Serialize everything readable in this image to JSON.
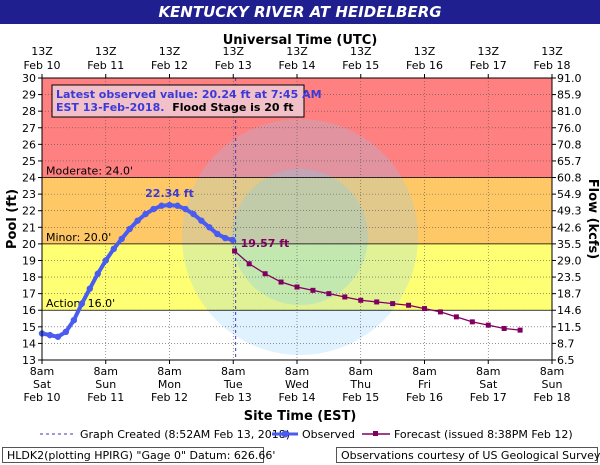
{
  "header": {
    "title": "KENTUCKY RIVER AT HEIDELBERG"
  },
  "chart_data": {
    "type": "line",
    "title": "KENTUCKY RIVER AT HEIDELBERG",
    "top_axis_title": "Universal Time (UTC)",
    "bottom_axis_title": "Site Time (EST)",
    "ylabel_left": "Pool (ft)",
    "ylabel_right": "Flow (kcfs)",
    "ylim": [
      13,
      30
    ],
    "yticks": [
      13,
      14,
      15,
      16,
      17,
      18,
      19,
      20,
      21,
      22,
      23,
      24,
      25,
      26,
      27,
      28,
      29,
      30
    ],
    "right_ticks": [
      "6.5",
      "8.7",
      "11.5",
      "14.6",
      "18.7",
      "23.5",
      "29.0",
      "35.5",
      "42.6",
      "49.3",
      "54.9",
      "60.8",
      "65.7",
      "70.8",
      "76.0",
      "81.0",
      "85.9",
      "91.0"
    ],
    "x_hours_range": [
      0,
      192
    ],
    "top_ticks": [
      {
        "l1": "13Z",
        "l2": "Feb 10"
      },
      {
        "l1": "13Z",
        "l2": "Feb 11"
      },
      {
        "l1": "13Z",
        "l2": "Feb 12"
      },
      {
        "l1": "13Z",
        "l2": "Feb 13"
      },
      {
        "l1": "13Z",
        "l2": "Feb 14"
      },
      {
        "l1": "13Z",
        "l2": "Feb 15"
      },
      {
        "l1": "13Z",
        "l2": "Feb 16"
      },
      {
        "l1": "13Z",
        "l2": "Feb 17"
      },
      {
        "l1": "13Z",
        "l2": "Feb 18"
      }
    ],
    "bottom_ticks": [
      {
        "l1": "8am",
        "l2": "Sat",
        "l3": "Feb 10"
      },
      {
        "l1": "8am",
        "l2": "Sun",
        "l3": "Feb 11"
      },
      {
        "l1": "8am",
        "l2": "Mon",
        "l3": "Feb 12"
      },
      {
        "l1": "8am",
        "l2": "Tue",
        "l3": "Feb 13"
      },
      {
        "l1": "8am",
        "l2": "Wed",
        "l3": "Feb 14"
      },
      {
        "l1": "8am",
        "l2": "Thu",
        "l3": "Feb 15"
      },
      {
        "l1": "8am",
        "l2": "Fri",
        "l3": "Feb 16"
      },
      {
        "l1": "8am",
        "l2": "Sat",
        "l3": "Feb 17"
      },
      {
        "l1": "8am",
        "l2": "Sun",
        "l3": "Feb 18"
      }
    ],
    "bands": [
      {
        "from": 24,
        "to": 30,
        "color": "#ff8080",
        "label": "Moderate: 24.0'"
      },
      {
        "from": 20,
        "to": 24,
        "color": "#ffc866",
        "label": "Minor: 20.0'"
      },
      {
        "from": 16,
        "to": 20,
        "color": "#ffff73",
        "label": "Action: 16.0'"
      },
      {
        "from": 13,
        "to": 16,
        "color": "#ffffff",
        "label": ""
      }
    ],
    "graph_created_hour": 72.9,
    "series": [
      {
        "name": "Observed",
        "color": "#4a5cf0",
        "x": [
          0,
          3,
          6,
          9,
          12,
          15,
          18,
          21,
          24,
          27,
          30,
          33,
          36,
          39,
          42,
          45,
          48,
          51,
          54,
          57,
          60,
          63,
          66,
          69,
          71.75
        ],
        "y": [
          14.6,
          14.5,
          14.4,
          14.7,
          15.4,
          16.4,
          17.3,
          18.2,
          19.0,
          19.7,
          20.3,
          20.9,
          21.4,
          21.8,
          22.1,
          22.3,
          22.34,
          22.3,
          22.1,
          21.8,
          21.4,
          21.0,
          20.6,
          20.35,
          20.24
        ]
      },
      {
        "name": "Forecast",
        "color": "#800060",
        "x": [
          72.5,
          78,
          84,
          90,
          96,
          102,
          108,
          114,
          120,
          126,
          132,
          138,
          144,
          150,
          156,
          162,
          168,
          174,
          180
        ],
        "y": [
          19.57,
          18.8,
          18.2,
          17.7,
          17.4,
          17.2,
          17.0,
          16.8,
          16.6,
          16.5,
          16.4,
          16.3,
          16.1,
          15.9,
          15.6,
          15.3,
          15.1,
          14.9,
          14.8
        ]
      }
    ],
    "annotations": {
      "latest_line1": "Latest observed value: 20.24 ft at 7:45 AM",
      "latest_line2": "EST 13-Feb-2018.",
      "flood_stage": "Flood Stage is 20 ft",
      "peak_label": "22.34 ft",
      "forecast_start_label": "19.57 ft"
    },
    "legend": {
      "graph_created": "Graph Created (8:52AM Feb 13, 2018)",
      "observed": "Observed",
      "forecast": "Forecast (issued 8:38PM Feb 12)"
    }
  },
  "footer": {
    "left": "HLDK2(plotting HPIRG) \"Gage 0\" Datum: 626.66'",
    "right": "Observations courtesy of US Geological Survey"
  }
}
